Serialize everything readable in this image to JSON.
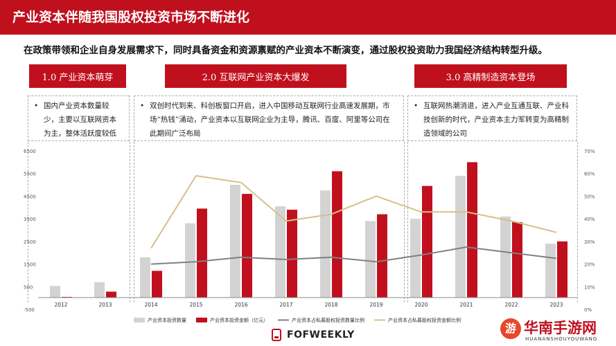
{
  "header": {
    "title": "产业资本伴随我国股权投资市场不断进化",
    "subtitle": "在政策带领和企业自身发展需求下，同时具备资金和资源禀赋的产业资本不断演变，通过股权投资助力我国经济结构转型升级。"
  },
  "phases": [
    {
      "label": "1.0  产业资本萌芽",
      "bullet": "•",
      "description": "国内产业资本数量较少，主要以互联网资本为主，整体活跃度较低"
    },
    {
      "label": "2.0  互联网产业资本大爆发",
      "bullet": "•",
      "description": "双创时代到来、科创板窗口开启，进入中国移动互联网行业高速发展期，市场“热钱”涌动，产业资本以互联网企业为主导，腾讯、百度、阿里等公司在此期间广泛布局"
    },
    {
      "label": "3.0  高精制造资本登场",
      "bullet": "•",
      "description": "互联网热潮消退，进入产业互通互联、产业科技创新的时代，产业资本主力军转变为高精制造领域的公司"
    }
  ],
  "footer": {
    "logo": "FOFWEEKLY"
  },
  "watermark": {
    "text": "华南手游网",
    "pinyin": "HUANANSHOUYOUWANG",
    "badge": "游"
  },
  "colors": {
    "accent": "#c0101e",
    "gray_bar": "#d3d3d3",
    "red_bar": "#c0101e",
    "gray_line": "#808080",
    "gold_line": "#d6c08a"
  },
  "chart_data": {
    "type": "bar",
    "categories": [
      "2012",
      "2013",
      "2014",
      "2015",
      "2016",
      "2017",
      "2018",
      "2019",
      "2020",
      "2021",
      "2022",
      "2023"
    ],
    "series": [
      {
        "name": "产业资本投资数量",
        "kind": "bar",
        "axis": "left",
        "values": [
          530,
          700,
          1800,
          3300,
          5000,
          4050,
          4750,
          3400,
          3500,
          5400,
          3600,
          2400
        ]
      },
      {
        "name": "产业资本投资金额（亿元）",
        "kind": "bar",
        "axis": "left",
        "values": [
          50,
          280,
          1200,
          3950,
          4600,
          3900,
          5600,
          3700,
          4950,
          6000,
          3350,
          2500
        ]
      },
      {
        "name": "产业资本占私募股权投资数量比例",
        "kind": "line",
        "axis": "right",
        "values": [
          null,
          null,
          20,
          21,
          23,
          22,
          23,
          21,
          24,
          27.5,
          25,
          22.5
        ]
      },
      {
        "name": "产业资本占私募股权投资金额比例",
        "kind": "line",
        "axis": "right",
        "values": [
          null,
          null,
          27,
          59,
          56,
          39,
          42,
          50,
          43,
          43,
          39,
          34
        ]
      }
    ],
    "left_axis": {
      "ticks": [
        "6500",
        "5500",
        "4500",
        "3500",
        "2500",
        "1500",
        "500",
        "-500"
      ],
      "min": -500,
      "max": 6500
    },
    "right_axis": {
      "ticks": [
        "70%",
        "60%",
        "50%",
        "40%",
        "30%",
        "20%",
        "10%",
        "0%"
      ],
      "min": 0,
      "max": 70
    },
    "legend_position": "bottom",
    "grid": false
  }
}
